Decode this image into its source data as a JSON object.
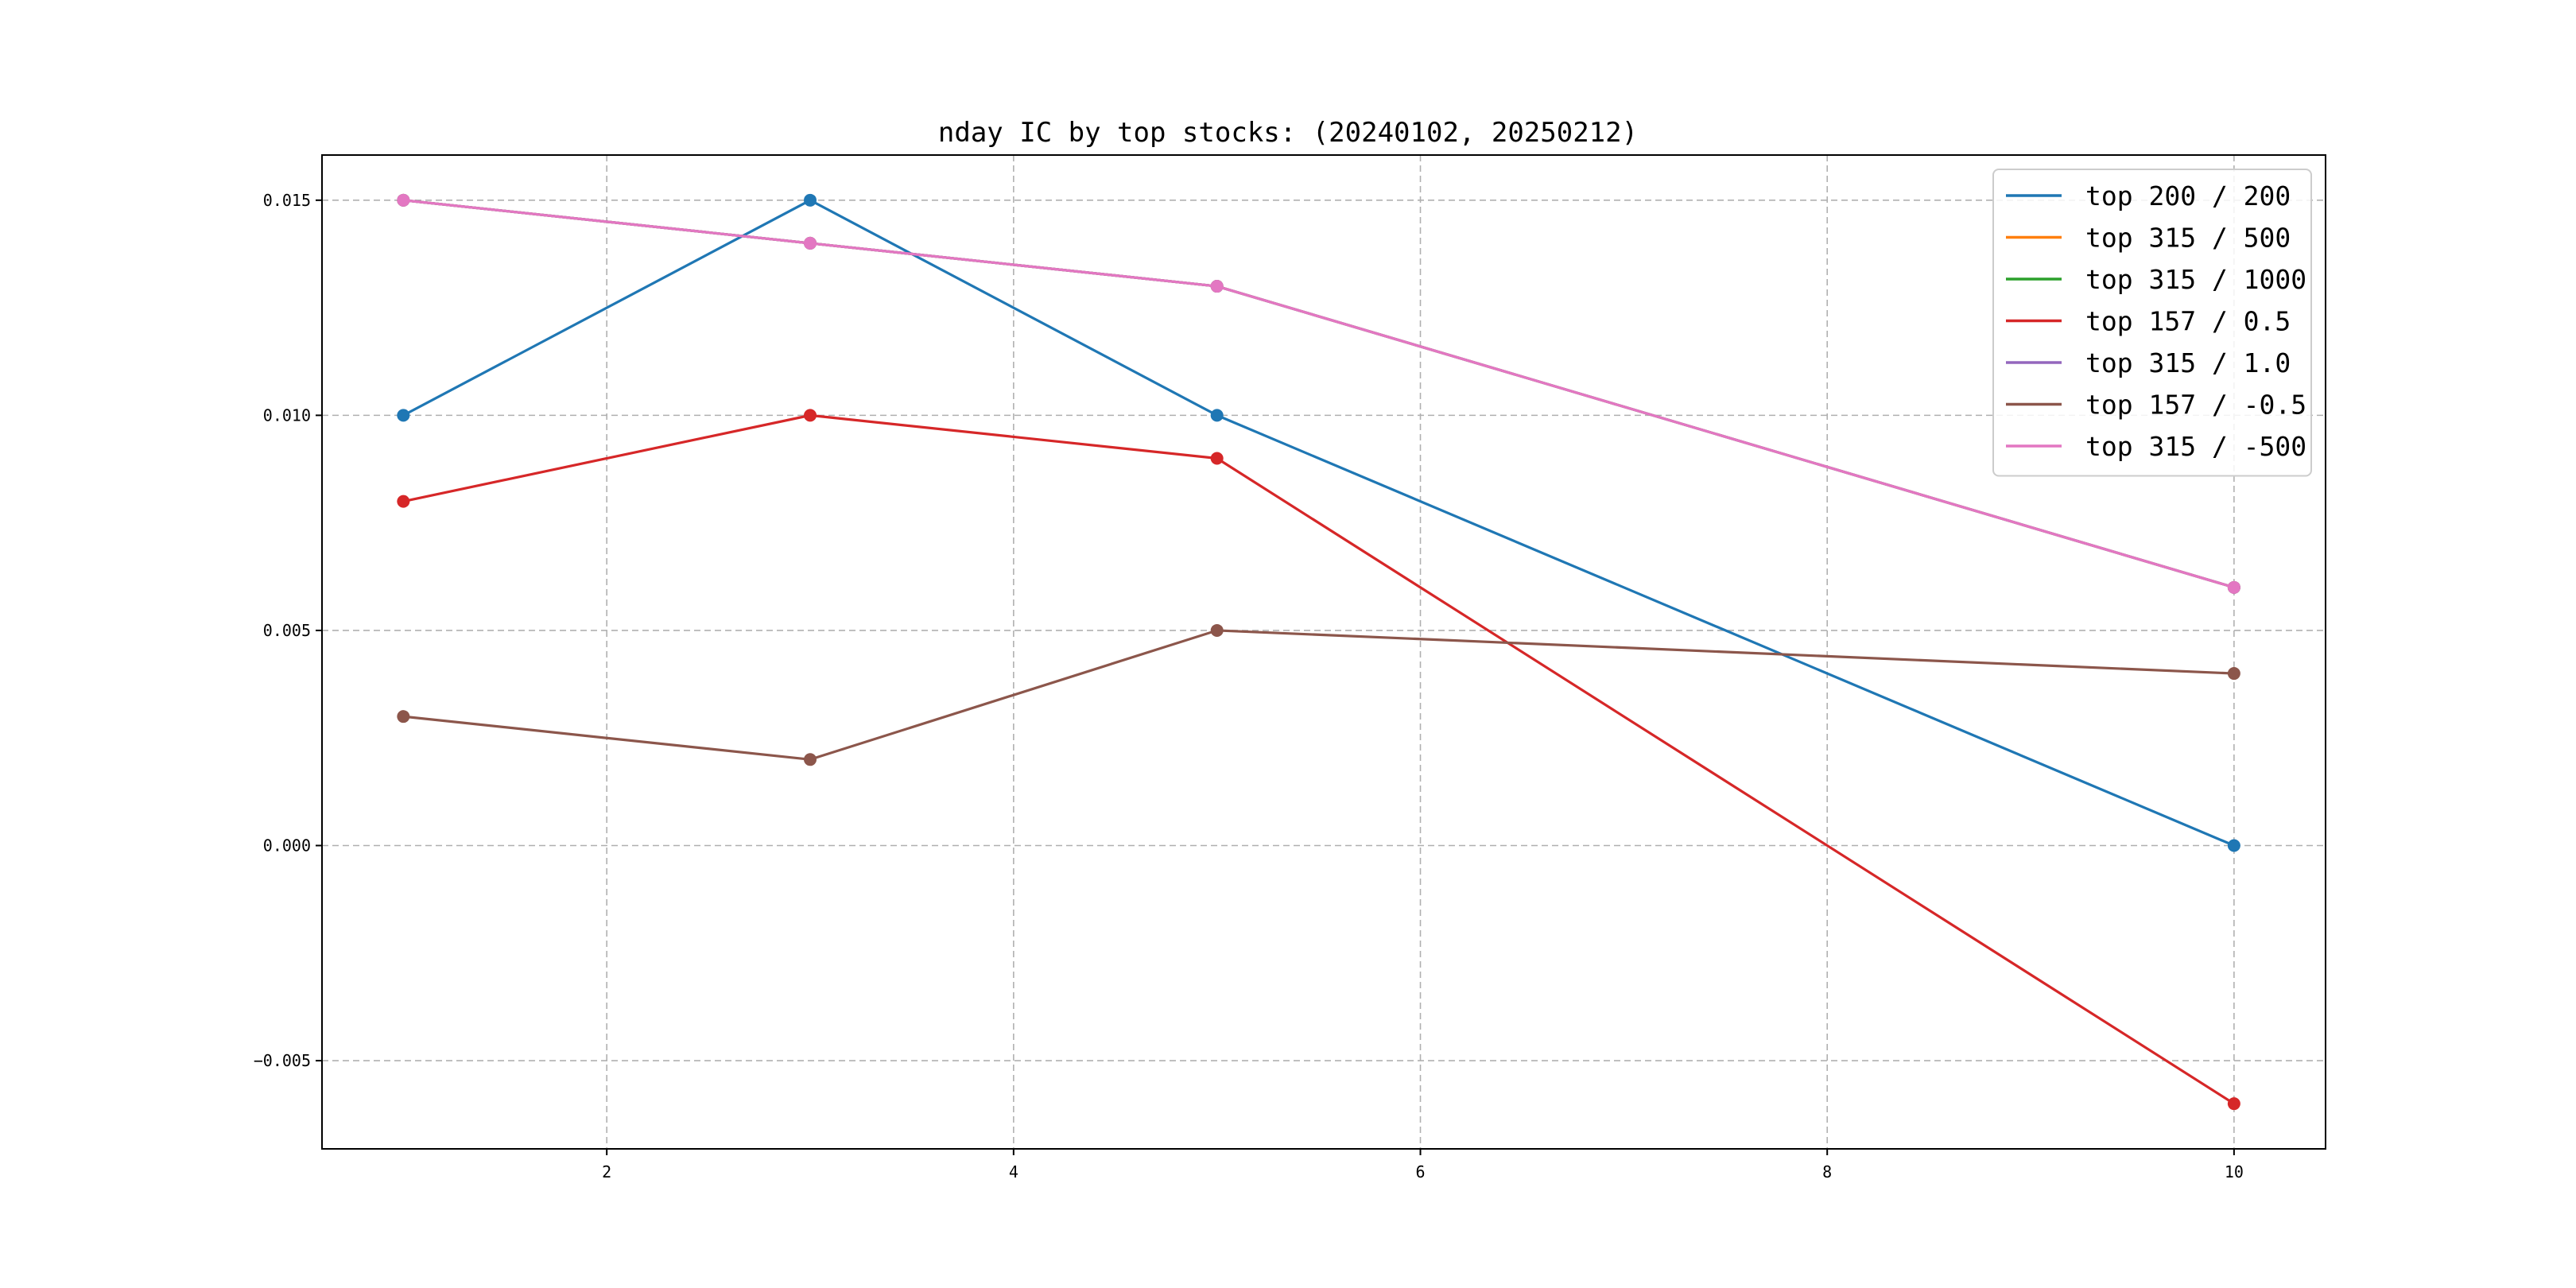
{
  "chart_data": {
    "type": "line",
    "title": "nday IC by top stocks: (20240102, 20250212)",
    "xlabel": "",
    "ylabel": "",
    "x": [
      1,
      3,
      5,
      10
    ],
    "xlim": [
      0.6,
      10.45
    ],
    "ylim": [
      -0.00705,
      0.01605
    ],
    "xticks": [
      2,
      4,
      6,
      8,
      10
    ],
    "xtick_labels": [
      "2",
      "4",
      "6",
      "8",
      "10"
    ],
    "yticks": [
      -0.005,
      0.0,
      0.005,
      0.01,
      0.015
    ],
    "ytick_labels": [
      "−0.005",
      "0.000",
      "0.005",
      "0.010",
      "0.015"
    ],
    "grid": true,
    "legend_position": "top-right",
    "series": [
      {
        "name": "top 200 / 200",
        "color": "#1f77b4",
        "values": [
          0.01,
          0.015,
          0.01,
          0.0
        ]
      },
      {
        "name": "top 315 / 500",
        "color": "#ff7f0e",
        "values": [
          0.015,
          0.014,
          0.013,
          0.006
        ]
      },
      {
        "name": "top 315 / 1000",
        "color": "#2ca02c",
        "values": [
          0.015,
          0.014,
          0.013,
          0.006
        ]
      },
      {
        "name": "top 157 / 0.5",
        "color": "#d62728",
        "values": [
          0.008,
          0.01,
          0.009,
          -0.006
        ]
      },
      {
        "name": "top 315 / 1.0",
        "color": "#9467bd",
        "values": [
          0.015,
          0.014,
          0.013,
          0.006
        ]
      },
      {
        "name": "top 157 / -0.5",
        "color": "#8c564b",
        "values": [
          0.003,
          0.002,
          0.005,
          0.004
        ]
      },
      {
        "name": "top 315 / -500",
        "color": "#e377c2",
        "values": [
          0.015,
          0.014,
          0.013,
          0.006
        ]
      }
    ]
  }
}
